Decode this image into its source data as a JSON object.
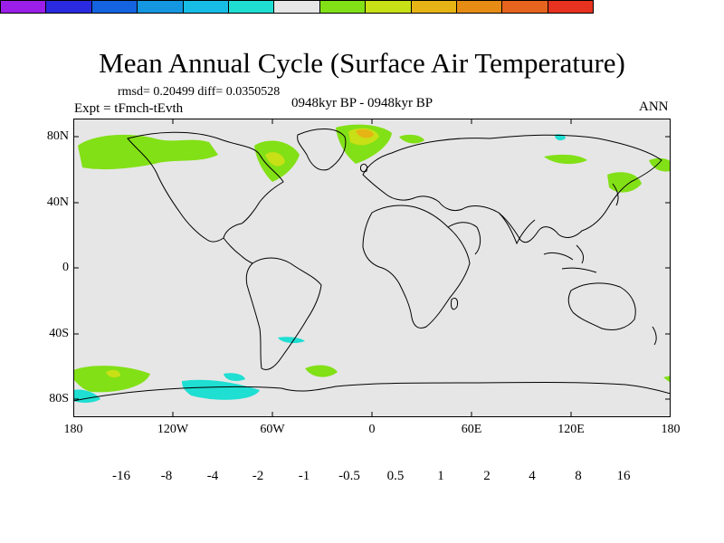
{
  "title": "Mean Annual Cycle (Surface Air Temperature)",
  "stats": "rmsd= 0.20499  diff= 0.0350528",
  "expt": "Expt = tFmch-tEvth",
  "period": "0948kyr BP - 0948kyr BP",
  "season": "ANN",
  "map": {
    "lat_labels": [
      "80N",
      "40N",
      "0",
      "40S",
      "80S"
    ],
    "lon_labels": [
      "180",
      "120W",
      "60W",
      "0",
      "60E",
      "120E",
      "180"
    ],
    "ocean_color": "#e6e6e6"
  },
  "colorbar": {
    "colors": [
      "#9b1fe8",
      "#2a2ae0",
      "#1463e0",
      "#1496e0",
      "#18bde6",
      "#1fded2",
      "#e6e6e6",
      "#82e016",
      "#c8e016",
      "#e6b414",
      "#e68c14",
      "#e6641e",
      "#e6321e"
    ],
    "labels": [
      "-16",
      "-8",
      "-4",
      "-2",
      "-1",
      "-0.5",
      "0.5",
      "1",
      "2",
      "4",
      "8",
      "16"
    ]
  }
}
